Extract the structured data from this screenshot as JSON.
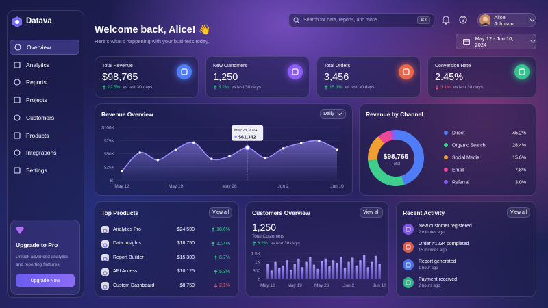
{
  "sidebar": {
    "brand": "Datava",
    "nav": [
      "Overview",
      "Analytics",
      "Reports",
      "Projects",
      "Customers",
      "Products",
      "Integrations",
      "Settings"
    ],
    "upgrade": {
      "title": "Upgrade to Pro",
      "text": "Unlock advanced analytics and reporting features.",
      "button": "Upgrade Now"
    }
  },
  "header": {
    "title": "Welcome back, Alice! 👋",
    "subtitle": "Here's what's happening with your business today.",
    "search": "Search for data, reports, and more..",
    "shortcut": "⌘K",
    "user": "Alice Johnson",
    "date_range": "May 12 - Jun 10, 2024"
  },
  "kpis": [
    {
      "label": "Total Revenue",
      "value": "$98,765",
      "change": "12.5%",
      "note": "vs last 30 days",
      "trend": "up",
      "color": "#4f7cf7"
    },
    {
      "label": "New Customers",
      "value": "1,250",
      "change": "8.2%",
      "note": "vs last 30 days",
      "trend": "up",
      "color": "#8b5cf6"
    },
    {
      "label": "Total Orders",
      "value": "3,456",
      "change": "15.3%",
      "note": "vs last 30 days",
      "trend": "up",
      "color": "#e8664a"
    },
    {
      "label": "Conversion Rate",
      "value": "2.45%",
      "change": "3.1%",
      "note": "vs last 30 days",
      "trend": "down",
      "color": "#34c38f"
    }
  ],
  "chart_data": [
    {
      "type": "line",
      "title": "Revenue Overview",
      "control": "Daily",
      "categories": [
        "May 12",
        null,
        null,
        "May 19",
        null,
        null,
        "May 26",
        null,
        null,
        "Jun 2",
        null,
        null,
        "Jun 10"
      ],
      "values": [
        17000,
        52000,
        38000,
        58000,
        71000,
        40000,
        45000,
        61342,
        42000,
        60000,
        70000,
        74000,
        58000
      ],
      "value_labels": [
        null,
        null,
        null,
        null,
        null,
        null,
        null,
        "$61,342",
        null,
        null,
        null,
        null,
        null
      ],
      "annotation": "May 28, 2024",
      "ylim": [
        0,
        100000
      ],
      "yticks": [
        {
          "value": 0,
          "label": "$0"
        },
        {
          "value": 25000,
          "label": "$25K"
        },
        {
          "value": 50000,
          "label": "$50K"
        },
        {
          "value": 75000,
          "label": "$75K"
        },
        {
          "value": 100000,
          "label": "$100K"
        }
      ],
      "color": "#9d8cff",
      "grid": true
    },
    {
      "type": "pie",
      "title": "Revenue by Channel",
      "center_value": "$98,765",
      "center_label": "Total",
      "categories": [
        "Direct",
        "Organic Search",
        "Social Media",
        "Email",
        "Referral"
      ],
      "values": [
        45.2,
        28.4,
        15.6,
        7.8,
        3.0
      ],
      "value_labels": [
        "45.2%",
        "28.4%",
        "15.6%",
        "7.8%",
        "3.0%"
      ],
      "colors": [
        "#4f7cf7",
        "#3ecf8e",
        "#f0a030",
        "#ec4899",
        "#8b5cf6"
      ]
    },
    {
      "type": "bar",
      "title": "Customers Overview",
      "action": "View all",
      "total": "1,250",
      "total_label": "Total Customers",
      "change": "8.2%",
      "note": "vs last 30 days",
      "trend": "up",
      "categories": [
        "May 12",
        null,
        null,
        null,
        null,
        null,
        null,
        "May 19",
        null,
        null,
        null,
        null,
        null,
        null,
        "May 26",
        null,
        null,
        null,
        null,
        null,
        null,
        "Jun 2",
        null,
        null,
        null,
        null,
        null,
        null,
        null,
        "Jun 10"
      ],
      "values": [
        900,
        500,
        1000,
        650,
        800,
        1100,
        550,
        900,
        1200,
        700,
        1000,
        1300,
        850,
        600,
        1050,
        1200,
        750,
        1100,
        950,
        1300,
        650,
        1000,
        1250,
        800,
        1100,
        1400,
        700,
        1000,
        1350,
        900
      ],
      "ylim": [
        0,
        1500
      ],
      "yticks": [
        0,
        500,
        {
          "value": 1000,
          "label": "1K"
        },
        {
          "value": 1500,
          "label": "1.5K"
        }
      ],
      "color": "#7c6cf0"
    }
  ],
  "top_products": {
    "title": "Top Products",
    "action": "View all",
    "rows": [
      {
        "name": "Analytics Pro",
        "revenue": "$24,590",
        "change": "18.6%",
        "trend": "up"
      },
      {
        "name": "Data Insights",
        "revenue": "$18,750",
        "change": "12.4%",
        "trend": "up"
      },
      {
        "name": "Report Builder",
        "revenue": "$15,300",
        "change": "8.7%",
        "trend": "up"
      },
      {
        "name": "API Access",
        "revenue": "$10,125",
        "change": "5.3%",
        "trend": "up"
      },
      {
        "name": "Custom Dashboard",
        "revenue": "$8,750",
        "change": "2.1%",
        "trend": "down"
      }
    ]
  },
  "recent_activity": {
    "title": "Recent Activity",
    "action": "View all",
    "items": [
      {
        "title": "New customer registered",
        "time": "2 minutes ago",
        "color": "#8b5cf6"
      },
      {
        "title": "Order #1234 completed",
        "time": "15 minutes ago",
        "color": "#e8664a"
      },
      {
        "title": "Report generated",
        "time": "1 hour ago",
        "color": "#4f7cf7"
      },
      {
        "title": "Payment received",
        "time": "2 hours ago",
        "color": "#34c38f"
      }
    ]
  }
}
